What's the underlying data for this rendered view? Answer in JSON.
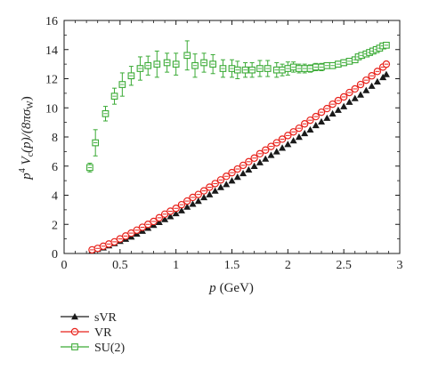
{
  "chart_data": {
    "type": "scatter",
    "xlabel_var": "p",
    "xlabel_unit": "(GeV)",
    "ylabel_main": "p",
    "ylabel_exp": "4",
    "ylabel_rest": " V",
    "ylabel_sub": "c",
    "ylabel_tail": "(p)/(8πσ",
    "ylabel_tail_sub": "W",
    "ylabel_close": ")",
    "xlim": [
      0,
      3
    ],
    "ylim": [
      0,
      16
    ],
    "x_ticks": [
      "0",
      "0.5",
      "1",
      "1.5",
      "2",
      "2.5",
      "3"
    ],
    "x_tick_values": [
      0,
      0.5,
      1,
      1.5,
      2,
      2.5,
      3
    ],
    "y_ticks": [
      "0",
      "2",
      "4",
      "6",
      "8",
      "10",
      "12",
      "14",
      "16"
    ],
    "y_tick_values": [
      0,
      2,
      4,
      6,
      8,
      10,
      12,
      14,
      16
    ],
    "legend_placement": "bottom-left outside",
    "series": [
      {
        "name": "sVR",
        "marker": "triangle",
        "color": "#1a1a1a",
        "x": [
          0.25,
          0.3,
          0.35,
          0.4,
          0.45,
          0.5,
          0.55,
          0.6,
          0.65,
          0.7,
          0.75,
          0.8,
          0.85,
          0.9,
          0.95,
          1.0,
          1.05,
          1.1,
          1.15,
          1.2,
          1.25,
          1.3,
          1.35,
          1.4,
          1.45,
          1.5,
          1.55,
          1.6,
          1.65,
          1.7,
          1.75,
          1.8,
          1.85,
          1.9,
          1.95,
          2.0,
          2.05,
          2.1,
          2.15,
          2.2,
          2.25,
          2.3,
          2.35,
          2.4,
          2.45,
          2.5,
          2.55,
          2.6,
          2.65,
          2.7,
          2.75,
          2.8,
          2.85,
          2.88
        ],
        "y": [
          0.2,
          0.3,
          0.4,
          0.55,
          0.7,
          0.85,
          1.0,
          1.15,
          1.35,
          1.55,
          1.75,
          1.95,
          2.15,
          2.35,
          2.55,
          2.75,
          2.95,
          3.2,
          3.4,
          3.6,
          3.85,
          4.05,
          4.3,
          4.55,
          4.75,
          5.0,
          5.25,
          5.5,
          5.75,
          6.0,
          6.25,
          6.5,
          6.75,
          7.0,
          7.25,
          7.5,
          7.75,
          8.0,
          8.25,
          8.5,
          8.8,
          9.05,
          9.3,
          9.6,
          9.85,
          10.1,
          10.4,
          10.65,
          10.9,
          11.2,
          11.5,
          11.8,
          12.1,
          12.3
        ]
      },
      {
        "name": "VR",
        "marker": "circle",
        "color": "#e8221b",
        "x": [
          0.25,
          0.3,
          0.35,
          0.4,
          0.45,
          0.5,
          0.55,
          0.6,
          0.65,
          0.7,
          0.75,
          0.8,
          0.85,
          0.9,
          0.95,
          1.0,
          1.05,
          1.1,
          1.15,
          1.2,
          1.25,
          1.3,
          1.35,
          1.4,
          1.45,
          1.5,
          1.55,
          1.6,
          1.65,
          1.7,
          1.75,
          1.8,
          1.85,
          1.9,
          1.95,
          2.0,
          2.05,
          2.1,
          2.15,
          2.2,
          2.25,
          2.3,
          2.35,
          2.4,
          2.45,
          2.5,
          2.55,
          2.6,
          2.65,
          2.7,
          2.75,
          2.8,
          2.85,
          2.88
        ],
        "y": [
          0.25,
          0.35,
          0.5,
          0.65,
          0.8,
          1.0,
          1.2,
          1.4,
          1.6,
          1.8,
          2.0,
          2.2,
          2.45,
          2.7,
          2.9,
          3.1,
          3.35,
          3.6,
          3.85,
          4.05,
          4.3,
          4.55,
          4.8,
          5.05,
          5.3,
          5.55,
          5.8,
          6.05,
          6.3,
          6.55,
          6.85,
          7.1,
          7.35,
          7.6,
          7.85,
          8.1,
          8.35,
          8.6,
          8.9,
          9.15,
          9.4,
          9.7,
          9.95,
          10.25,
          10.5,
          10.75,
          11.05,
          11.3,
          11.6,
          11.9,
          12.2,
          12.5,
          12.8,
          13.0
        ]
      },
      {
        "name": "SU(2)",
        "marker": "square",
        "color": "#3aaa35",
        "x": [
          0.23,
          0.28,
          0.37,
          0.45,
          0.52,
          0.6,
          0.68,
          0.75,
          0.83,
          0.92,
          1.0,
          1.1,
          1.17,
          1.25,
          1.33,
          1.42,
          1.5,
          1.55,
          1.62,
          1.68,
          1.75,
          1.82,
          1.9,
          1.95,
          2.0,
          2.05,
          2.1,
          2.15,
          2.2,
          2.25,
          2.3,
          2.35,
          2.4,
          2.45,
          2.5,
          2.55,
          2.6,
          2.63,
          2.66,
          2.7,
          2.73,
          2.76,
          2.79,
          2.82,
          2.85,
          2.88
        ],
        "y": [
          5.9,
          7.6,
          9.6,
          10.8,
          11.6,
          12.2,
          12.7,
          12.9,
          13.0,
          13.1,
          13.0,
          13.6,
          12.9,
          13.1,
          13.0,
          12.7,
          12.7,
          12.6,
          12.6,
          12.6,
          12.7,
          12.7,
          12.6,
          12.6,
          12.7,
          12.8,
          12.7,
          12.7,
          12.7,
          12.8,
          12.8,
          12.9,
          12.9,
          13.0,
          13.1,
          13.2,
          13.3,
          13.5,
          13.6,
          13.7,
          13.8,
          13.9,
          14.0,
          14.1,
          14.25,
          14.3
        ],
        "err": [
          0.3,
          0.9,
          0.5,
          0.55,
          0.8,
          0.65,
          0.8,
          0.65,
          0.9,
          0.65,
          0.75,
          1.0,
          0.8,
          0.65,
          0.65,
          0.6,
          0.6,
          0.6,
          0.5,
          0.5,
          0.55,
          0.55,
          0.5,
          0.4,
          0.45,
          0.35,
          0.3,
          0.3,
          0.25,
          0.25,
          0.25,
          0.2,
          0.2,
          0.2,
          0.2,
          0.15,
          0.15,
          0.15,
          0.15,
          0.15,
          0.15,
          0.15,
          0.15,
          0.15,
          0.15,
          0.15
        ]
      }
    ]
  }
}
